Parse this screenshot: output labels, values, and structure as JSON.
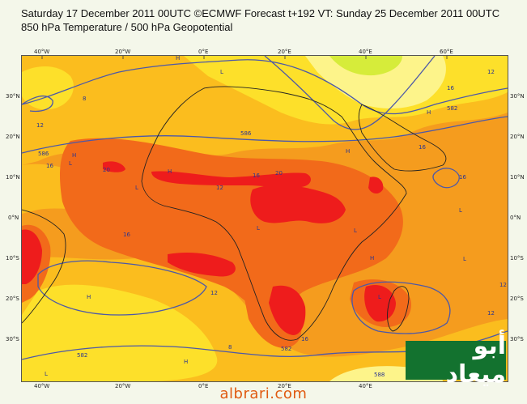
{
  "header": {
    "title_line1": "Saturday 17 December 2011 00UTC ©ECMWF Forecast t+192 VT: Sunday 25 December 2011 00UTC",
    "title_line2": "850 hPa Temperature / 500 hPa Geopotential"
  },
  "axes": {
    "top_longitudes": [
      "40°W",
      "20°W",
      "0°E",
      "20°E",
      "40°E",
      "60°E"
    ],
    "bottom_longitudes": [
      "40°W",
      "20°W",
      "0°E",
      "20°E",
      "40°E",
      "60°E"
    ],
    "left_latitudes": [
      "30°N",
      "20°N",
      "10°N",
      "0°N",
      "10°S",
      "20°S",
      "30°S"
    ],
    "right_latitudes": [
      "30°N",
      "20°N",
      "10°N",
      "0°N",
      "10°S",
      "20°S",
      "30°S"
    ]
  },
  "map": {
    "fill_colors": {
      "deep_red": "#ee1c1c",
      "red_orange": "#f26a1a",
      "orange": "#f59c1e",
      "amber": "#fbbd1e",
      "yellow": "#fde02a",
      "light_yellow": "#fdf48a",
      "lime": "#d6ec3a"
    },
    "contour_color": "#4c58a8",
    "coast_color": "#222222",
    "contour_labels": [
      "8",
      "12",
      "16",
      "20",
      "12",
      "16",
      "16",
      "20",
      "12",
      "16",
      "12",
      "16",
      "12",
      "16",
      "8",
      "12",
      "16",
      "582",
      "582",
      "582",
      "586",
      "586",
      "588"
    ],
    "pressure_marks": [
      "H",
      "L",
      "H",
      "L",
      "H",
      "L",
      "L",
      "H",
      "L",
      "H",
      "L",
      "H",
      "L",
      "L",
      "H",
      "L",
      "H"
    ]
  },
  "watermark": {
    "text": "أبو ميعاد",
    "bg_color": "#13722f"
  },
  "footer": {
    "text": "albrari.com",
    "color": "#e05a10"
  }
}
